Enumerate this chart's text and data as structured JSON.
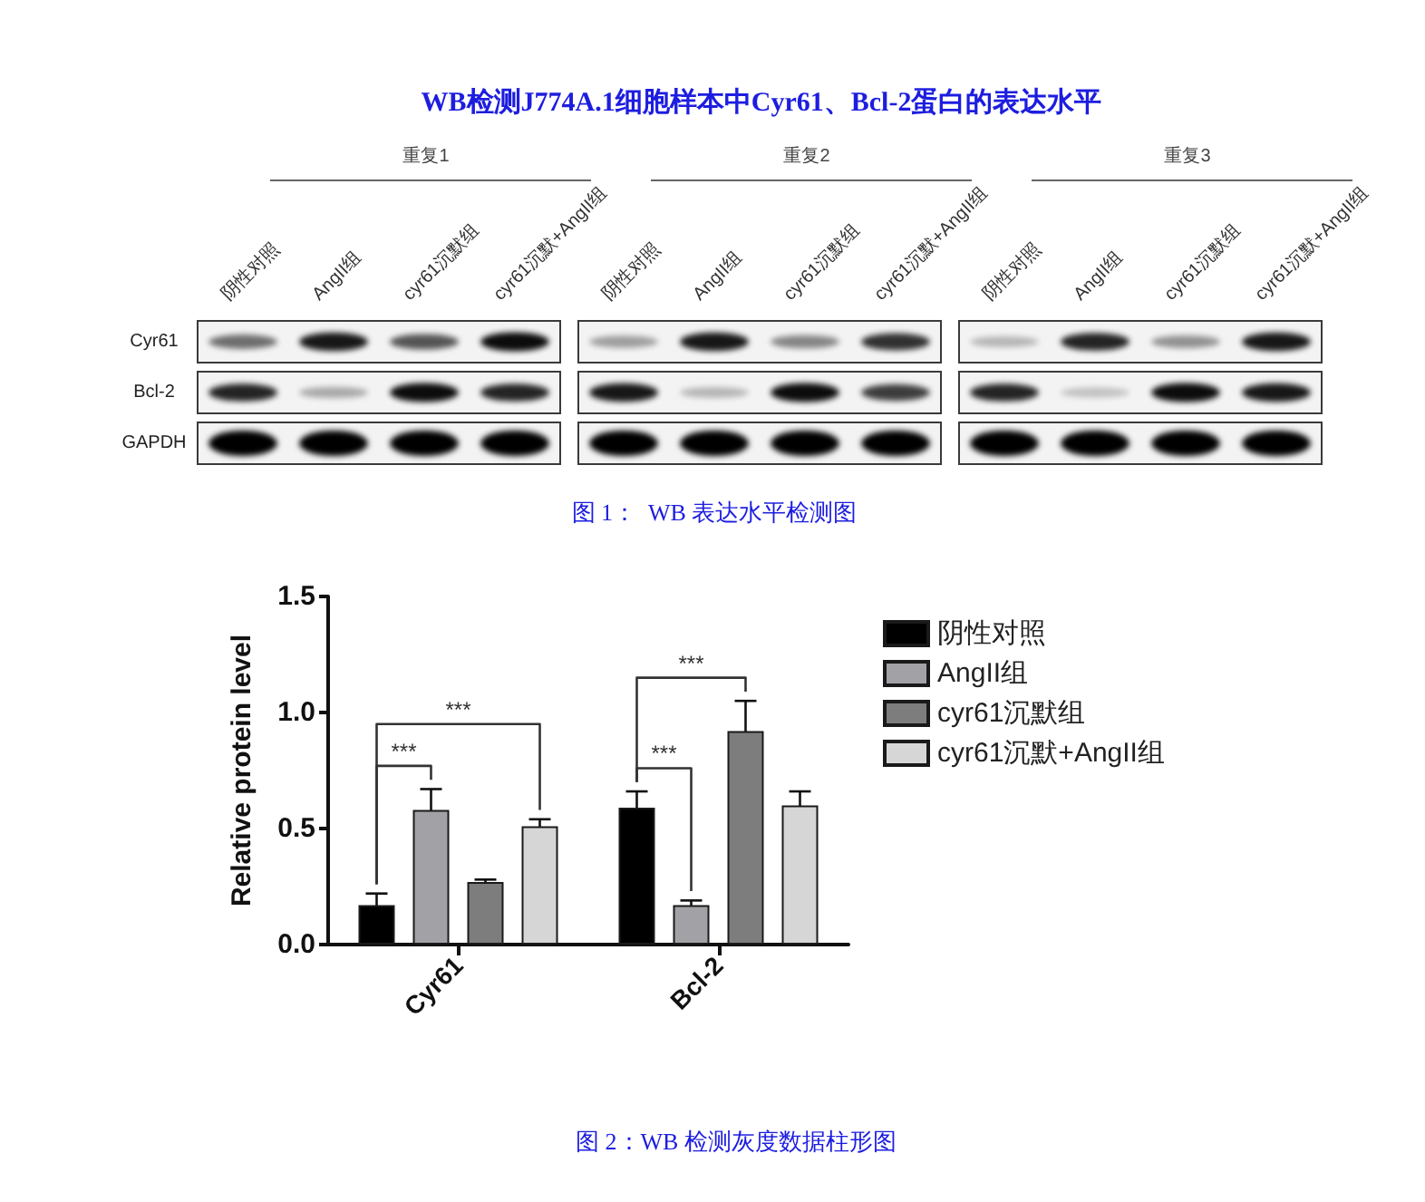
{
  "chart_data": [
    {
      "type": "other",
      "title": "WB检测J774A.1细胞样本中Cyr61、Bcl-2蛋白的表达水平",
      "categories": [
        "阴性对照",
        "AngII组",
        "cyr61沉默组",
        "cyr61沉默+AngII组",
        "阴性对照",
        "AngII组",
        "cyr61沉默组",
        "cyr61沉默+AngII组",
        "阴性对照",
        "AngII组",
        "cyr61沉默组",
        "cyr61沉默+AngII组"
      ],
      "y_categories": [
        "Cyr61",
        "Bcl-2",
        "GAPDH"
      ],
      "annotations": [
        "重复1",
        "重复2",
        "重复3",
        "图 1：  WB 表达水平检测图"
      ]
    },
    {
      "type": "bar",
      "categories": [
        "Cyr61",
        "Bcl-2"
      ],
      "ylabel": "Relative protein level",
      "ylim": [
        0,
        1.5
      ],
      "yticks": [
        {
          "value": 0,
          "label": "0.0"
        },
        0.5,
        {
          "value": 1,
          "label": "1.0"
        },
        1.5
      ],
      "grid": false,
      "legend": "right",
      "series": [
        {
          "name": "阴性对照",
          "color": "#000000",
          "values": [
            0.17,
            0.59
          ],
          "errors": [
            0.05,
            0.07
          ]
        },
        {
          "name": "AngII组",
          "color": "#a2a2a6",
          "values": [
            0.58,
            0.17
          ],
          "errors": [
            0.09,
            0.02
          ]
        },
        {
          "name": "cyr61沉默组",
          "color": "#7d7d7d",
          "values": [
            0.27,
            0.92
          ],
          "errors": [
            0.01,
            0.13
          ]
        },
        {
          "name": "cyr61沉默+AngII组",
          "color": "#d6d6d6",
          "values": [
            0.51,
            0.6
          ],
          "errors": [
            0.03,
            0.06
          ]
        }
      ],
      "annotations": [
        "***",
        "***",
        "***",
        "***",
        "图 2：WB 检测灰度数据柱形图"
      ]
    }
  ]
}
